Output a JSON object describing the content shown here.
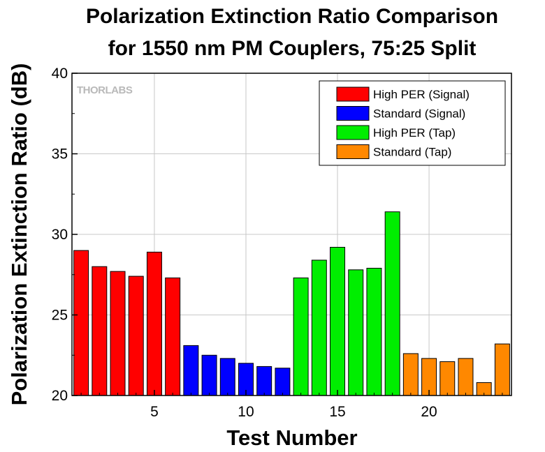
{
  "chart_data": {
    "type": "bar",
    "title_line1": "Polarization Extinction Ratio Comparison",
    "title_line2": "for 1550 nm PM Couplers, 75:25 Split",
    "xlabel": "Test Number",
    "ylabel": "Polarization Extinction Ratio (dB)",
    "xlim": [
      0.5,
      24.5
    ],
    "ylim": [
      20,
      40
    ],
    "x_major_ticks": [
      5,
      10,
      15,
      20
    ],
    "x_tick_labels": [
      "5",
      "10",
      "15",
      "20"
    ],
    "y_major_ticks": [
      20,
      25,
      30,
      35,
      40
    ],
    "y_tick_labels": [
      "20",
      "25",
      "30",
      "35",
      "40"
    ],
    "grid": true,
    "legend_placement": "top-right",
    "watermark": "THORLABS",
    "series": [
      {
        "name": "High PER (Signal)",
        "color": "#ff0000",
        "x": [
          1,
          2,
          3,
          4,
          5,
          6
        ],
        "values": [
          29.0,
          28.0,
          27.7,
          27.4,
          28.9,
          27.3
        ]
      },
      {
        "name": "Standard (Signal)",
        "color": "#0000ff",
        "x": [
          7,
          8,
          9,
          10,
          11,
          12
        ],
        "values": [
          23.1,
          22.5,
          22.3,
          22.0,
          21.8,
          21.7
        ]
      },
      {
        "name": "High PER (Tap)",
        "color": "#00ee00",
        "x": [
          13,
          14,
          15,
          16,
          17,
          18
        ],
        "values": [
          27.3,
          28.4,
          29.2,
          27.8,
          27.9,
          31.4
        ]
      },
      {
        "name": "Standard (Tap)",
        "color": "#ff8800",
        "x": [
          19,
          20,
          21,
          22,
          23,
          24
        ],
        "values": [
          22.6,
          22.3,
          22.1,
          22.3,
          20.8,
          23.2
        ]
      }
    ]
  }
}
